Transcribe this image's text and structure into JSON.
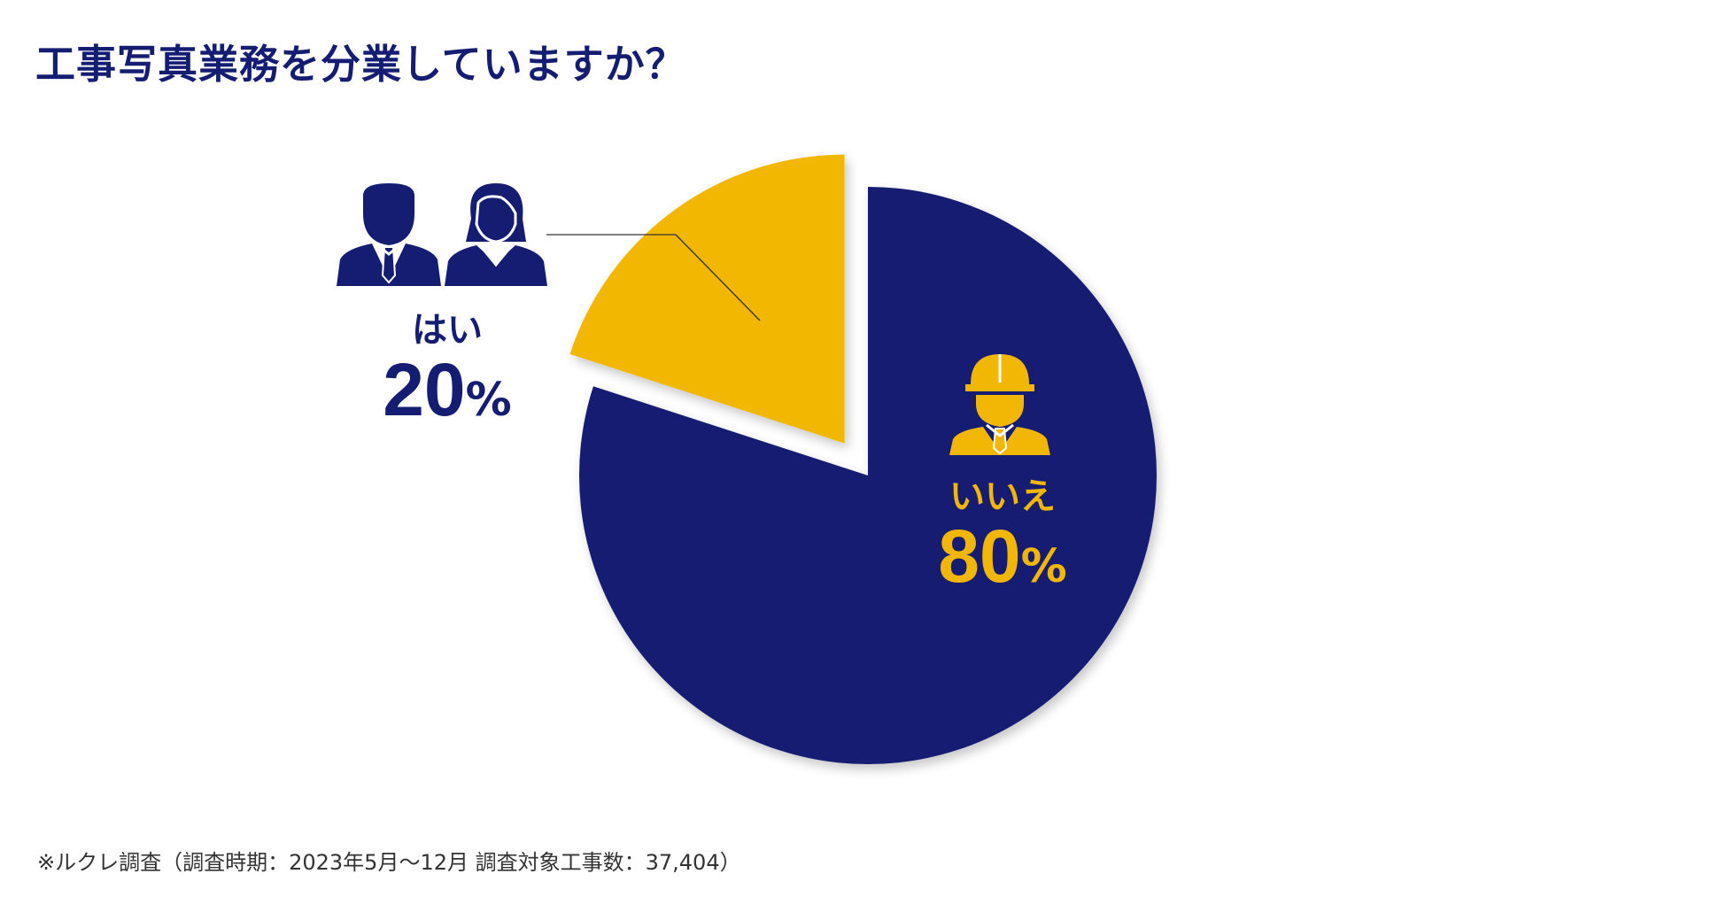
{
  "title": "工事写真業務を分業していますか？",
  "colors": {
    "primary": "#141d72",
    "accent": "#f2b705"
  },
  "chart_data": {
    "type": "pie",
    "title": "工事写真業務を分業していますか？",
    "start": "12 o'clock",
    "direction": "clockwise",
    "slices": [
      {
        "label": "いいえ",
        "value": 80,
        "display": "80",
        "unit": "%",
        "color": "#141d72",
        "exploded": false,
        "icon": "construction-worker-hardhat-icon"
      },
      {
        "label": "はい",
        "value": 20,
        "display": "20",
        "unit": "%",
        "color": "#f2b705",
        "exploded": true,
        "icon": "businessman-businesswoman-icon"
      }
    ]
  },
  "footnote": "※ルクレ調査（調査時期：2023年5月〜12月 調査対象工事数：37,404）"
}
